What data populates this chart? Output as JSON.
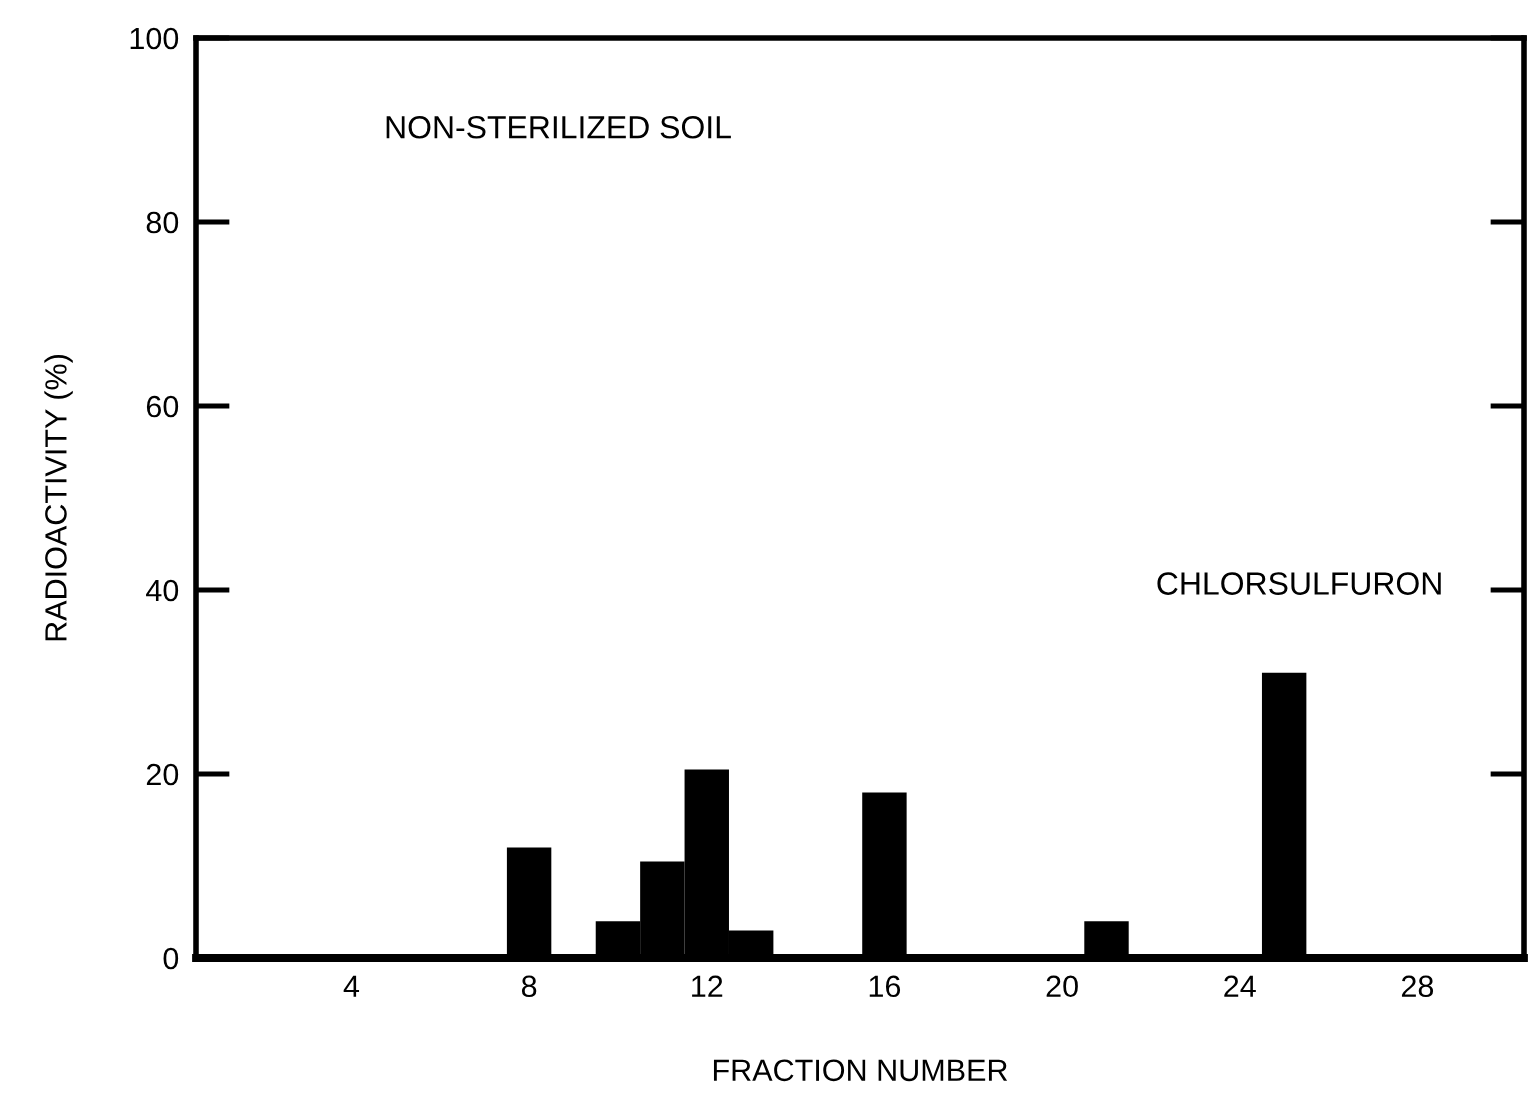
{
  "chart_data": {
    "type": "bar",
    "xlabel": "FRACTION NUMBER",
    "ylabel": "RADIOACTIVITY (%)",
    "x": [
      8,
      10,
      11,
      12,
      13,
      16,
      21,
      25
    ],
    "values": [
      12,
      4,
      10.5,
      20.5,
      3,
      18,
      4,
      31
    ],
    "color": "#000000",
    "xlim": [
      0.5,
      30.4
    ],
    "xticks": [
      4,
      8,
      12,
      16,
      20,
      24,
      28
    ],
    "ylim": [
      0,
      100
    ],
    "yticks": [
      0,
      20,
      40,
      60,
      80,
      100
    ],
    "annotations": [
      "NON-STERILIZED SOIL",
      "CHLORSULFURON"
    ]
  }
}
